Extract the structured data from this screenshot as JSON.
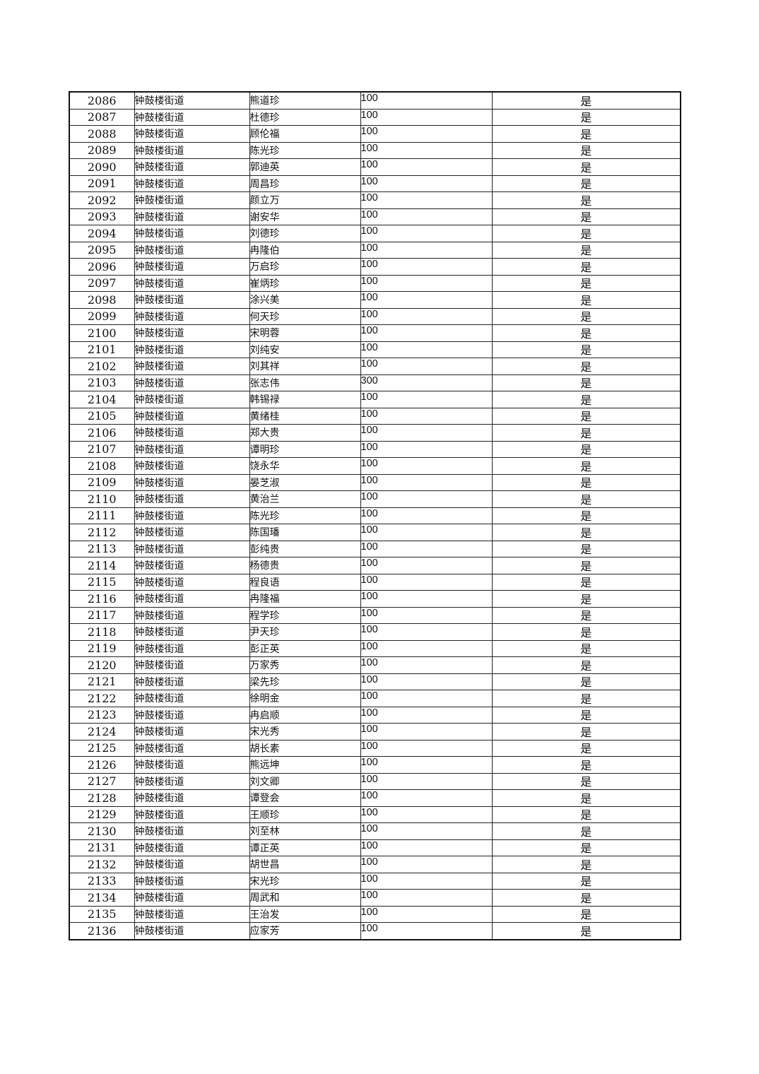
{
  "rows": [
    {
      "no": "2086",
      "street": "钟鼓楼街道",
      "name": "熊道珍",
      "amount": "100",
      "flag": "是"
    },
    {
      "no": "2087",
      "street": "钟鼓楼街道",
      "name": "杜德珍",
      "amount": "100",
      "flag": "是"
    },
    {
      "no": "2088",
      "street": "钟鼓楼街道",
      "name": "顾伦福",
      "amount": "100",
      "flag": "是"
    },
    {
      "no": "2089",
      "street": "钟鼓楼街道",
      "name": "陈光珍",
      "amount": "100",
      "flag": "是"
    },
    {
      "no": "2090",
      "street": "钟鼓楼街道",
      "name": "郭迪英",
      "amount": "100",
      "flag": "是"
    },
    {
      "no": "2091",
      "street": "钟鼓楼街道",
      "name": "周昌珍",
      "amount": "100",
      "flag": "是"
    },
    {
      "no": "2092",
      "street": "钟鼓楼街道",
      "name": "颜立万",
      "amount": "100",
      "flag": "是"
    },
    {
      "no": "2093",
      "street": "钟鼓楼街道",
      "name": "谢安华",
      "amount": "100",
      "flag": "是"
    },
    {
      "no": "2094",
      "street": "钟鼓楼街道",
      "name": "刘德珍",
      "amount": "100",
      "flag": "是"
    },
    {
      "no": "2095",
      "street": "钟鼓楼街道",
      "name": "冉隆伯",
      "amount": "100",
      "flag": "是"
    },
    {
      "no": "2096",
      "street": "钟鼓楼街道",
      "name": "万启珍",
      "amount": "100",
      "flag": "是"
    },
    {
      "no": "2097",
      "street": "钟鼓楼街道",
      "name": "崔炳珍",
      "amount": "100",
      "flag": "是"
    },
    {
      "no": "2098",
      "street": "钟鼓楼街道",
      "name": "涂兴美",
      "amount": "100",
      "flag": "是"
    },
    {
      "no": "2099",
      "street": "钟鼓楼街道",
      "name": "何天珍",
      "amount": "100",
      "flag": "是"
    },
    {
      "no": "2100",
      "street": "钟鼓楼街道",
      "name": "宋明蓉",
      "amount": "100",
      "flag": "是"
    },
    {
      "no": "2101",
      "street": "钟鼓楼街道",
      "name": "刘纯安",
      "amount": "100",
      "flag": "是"
    },
    {
      "no": "2102",
      "street": "钟鼓楼街道",
      "name": "刘其祥",
      "amount": "100",
      "flag": "是"
    },
    {
      "no": "2103",
      "street": "钟鼓楼街道",
      "name": "张志伟",
      "amount": "300",
      "flag": "是"
    },
    {
      "no": "2104",
      "street": "钟鼓楼街道",
      "name": "韩锡禄",
      "amount": "100",
      "flag": "是"
    },
    {
      "no": "2105",
      "street": "钟鼓楼街道",
      "name": "黄绪桂",
      "amount": "100",
      "flag": "是"
    },
    {
      "no": "2106",
      "street": "钟鼓楼街道",
      "name": "郑大贵",
      "amount": "100",
      "flag": "是"
    },
    {
      "no": "2107",
      "street": "钟鼓楼街道",
      "name": "谭明珍",
      "amount": "100",
      "flag": "是"
    },
    {
      "no": "2108",
      "street": "钟鼓楼街道",
      "name": "饶永华",
      "amount": "100",
      "flag": "是"
    },
    {
      "no": "2109",
      "street": "钟鼓楼街道",
      "name": "晏芝淑",
      "amount": "100",
      "flag": "是"
    },
    {
      "no": "2110",
      "street": "钟鼓楼街道",
      "name": "黄治兰",
      "amount": "100",
      "flag": "是"
    },
    {
      "no": "2111",
      "street": "钟鼓楼街道",
      "name": "陈光珍",
      "amount": "100",
      "flag": "是"
    },
    {
      "no": "2112",
      "street": "钟鼓楼街道",
      "name": "陈国璠",
      "amount": "100",
      "flag": "是"
    },
    {
      "no": "2113",
      "street": "钟鼓楼街道",
      "name": "彭纯贵",
      "amount": "100",
      "flag": "是"
    },
    {
      "no": "2114",
      "street": "钟鼓楼街道",
      "name": "杨德贵",
      "amount": "100",
      "flag": "是"
    },
    {
      "no": "2115",
      "street": "钟鼓楼街道",
      "name": "程良语",
      "amount": "100",
      "flag": "是"
    },
    {
      "no": "2116",
      "street": "钟鼓楼街道",
      "name": "冉隆福",
      "amount": "100",
      "flag": "是"
    },
    {
      "no": "2117",
      "street": "钟鼓楼街道",
      "name": "程学珍",
      "amount": "100",
      "flag": "是"
    },
    {
      "no": "2118",
      "street": "钟鼓楼街道",
      "name": "尹天珍",
      "amount": "100",
      "flag": "是"
    },
    {
      "no": "2119",
      "street": "钟鼓楼街道",
      "name": "彭正英",
      "amount": "100",
      "flag": "是"
    },
    {
      "no": "2120",
      "street": "钟鼓楼街道",
      "name": "万家秀",
      "amount": "100",
      "flag": "是"
    },
    {
      "no": "2121",
      "street": "钟鼓楼街道",
      "name": "梁先珍",
      "amount": "100",
      "flag": "是"
    },
    {
      "no": "2122",
      "street": "钟鼓楼街道",
      "name": "徐明金",
      "amount": "100",
      "flag": "是"
    },
    {
      "no": "2123",
      "street": "钟鼓楼街道",
      "name": "冉启顺",
      "amount": "100",
      "flag": "是"
    },
    {
      "no": "2124",
      "street": "钟鼓楼街道",
      "name": "宋光秀",
      "amount": "100",
      "flag": "是"
    },
    {
      "no": "2125",
      "street": "钟鼓楼街道",
      "name": "胡长素",
      "amount": "100",
      "flag": "是"
    },
    {
      "no": "2126",
      "street": "钟鼓楼街道",
      "name": "熊远坤",
      "amount": "100",
      "flag": "是"
    },
    {
      "no": "2127",
      "street": "钟鼓楼街道",
      "name": "刘文卿",
      "amount": "100",
      "flag": "是"
    },
    {
      "no": "2128",
      "street": "钟鼓楼街道",
      "name": "谭登会",
      "amount": "100",
      "flag": "是"
    },
    {
      "no": "2129",
      "street": "钟鼓楼街道",
      "name": "王顺珍",
      "amount": "100",
      "flag": "是"
    },
    {
      "no": "2130",
      "street": "钟鼓楼街道",
      "name": "刘至林",
      "amount": "100",
      "flag": "是"
    },
    {
      "no": "2131",
      "street": "钟鼓楼街道",
      "name": "谭正英",
      "amount": "100",
      "flag": "是"
    },
    {
      "no": "2132",
      "street": "钟鼓楼街道",
      "name": "胡世昌",
      "amount": "100",
      "flag": "是"
    },
    {
      "no": "2133",
      "street": "钟鼓楼街道",
      "name": "宋光珍",
      "amount": "100",
      "flag": "是"
    },
    {
      "no": "2134",
      "street": "钟鼓楼街道",
      "name": "周武和",
      "amount": "100",
      "flag": "是"
    },
    {
      "no": "2135",
      "street": "钟鼓楼街道",
      "name": "王治发",
      "amount": "100",
      "flag": "是"
    },
    {
      "no": "2136",
      "street": "钟鼓楼街道",
      "name": "应家芳",
      "amount": "100",
      "flag": "是"
    }
  ]
}
